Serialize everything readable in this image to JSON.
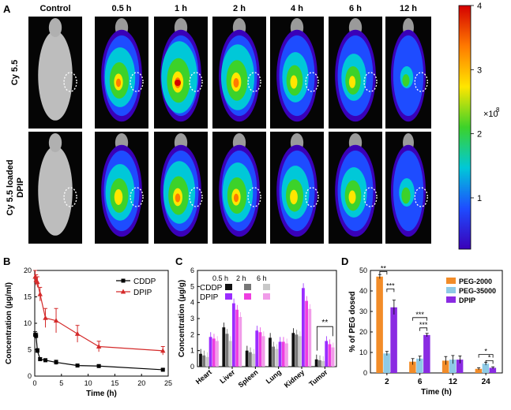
{
  "panel_letters": {
    "a": "A",
    "b": "B",
    "c": "C",
    "d": "D"
  },
  "panel_a": {
    "column_labels": [
      "Control",
      "0.5 h",
      "1 h",
      "2 h",
      "4 h",
      "6 h",
      "12 h"
    ],
    "row_labels": [
      "Cy 5.5",
      "Cy 5.5 loaded DPIP"
    ],
    "row2_label_lines": [
      "Cy 5.5 loaded",
      "DPIP"
    ],
    "intensity_rows": [
      [
        0,
        0.75,
        0.95,
        0.85,
        0.6,
        0.55,
        0.15
      ],
      [
        0,
        0.7,
        0.8,
        0.75,
        0.65,
        0.6,
        0.25
      ]
    ],
    "colorbar": {
      "ticks": [
        "4",
        "3",
        "2",
        "1"
      ],
      "scale_base": "×10",
      "scale_exp": "8",
      "colors": [
        "#d40000",
        "#ff7a00",
        "#ffe600",
        "#3cd22a",
        "#00c8d8",
        "#1e4cff",
        "#3a00b8"
      ]
    }
  },
  "chart_data": [
    {
      "panel": "B",
      "type": "line",
      "ylabel": "Concentration (μg/ml)",
      "xlabel": "Time (h)",
      "xlim": [
        0,
        25
      ],
      "ylim": [
        0,
        20
      ],
      "xticks": [
        "0",
        "5",
        "10",
        "15",
        "20",
        "25"
      ],
      "yticks": [
        "0",
        "5",
        "10",
        "15",
        "20"
      ],
      "series": [
        {
          "name": "CDDP",
          "color": "#000000",
          "marker": "square",
          "x": [
            0.083,
            0.25,
            0.5,
            1,
            2,
            4,
            8,
            12,
            24
          ],
          "y": [
            7.8,
            7.6,
            4.8,
            3.2,
            3.0,
            2.6,
            2.0,
            1.9,
            1.2
          ],
          "err": [
            0.6,
            0.5,
            0.4,
            0.3,
            0.3,
            0.4,
            0.2,
            0.2,
            0.2
          ]
        },
        {
          "name": "DPIP",
          "color": "#d42a2a",
          "marker": "triangle",
          "x": [
            0.083,
            0.25,
            0.5,
            1,
            2,
            4,
            8,
            12,
            24
          ],
          "y": [
            18.8,
            18.2,
            17.8,
            15.5,
            11.0,
            10.5,
            8.0,
            5.6,
            4.8
          ],
          "err": [
            1.2,
            1.0,
            1.0,
            1.3,
            1.8,
            2.3,
            1.6,
            1.0,
            0.8
          ]
        }
      ]
    },
    {
      "panel": "C",
      "type": "bar",
      "ylabel": "Concentration (μg/g)",
      "ylim": [
        0,
        6
      ],
      "yticks": [
        "0",
        "1",
        "2",
        "3",
        "4",
        "5",
        "6"
      ],
      "categories": [
        "Heart",
        "Liver",
        "Spleen",
        "Lung",
        "Kidney",
        "Tumor"
      ],
      "legend_times": [
        "0.5 h",
        "2 h",
        "6 h"
      ],
      "legend_groups": [
        "CDDP",
        "DPIP"
      ],
      "series": [
        {
          "name": "CDDP 0.5 h",
          "color": "#111111",
          "values": [
            0.8,
            2.45,
            1.0,
            1.8,
            2.1,
            0.45
          ]
        },
        {
          "name": "CDDP 2 h",
          "color": "#777777",
          "values": [
            0.7,
            2.05,
            0.9,
            1.25,
            2.0,
            0.4
          ]
        },
        {
          "name": "CDDP 6 h",
          "color": "#c8c8c8",
          "values": [
            0.6,
            1.6,
            0.8,
            1.1,
            1.9,
            0.35
          ]
        },
        {
          "name": "DPIP 0.5 h",
          "color": "#9b2cff",
          "values": [
            1.85,
            3.95,
            2.25,
            1.55,
            4.9,
            1.6
          ]
        },
        {
          "name": "DPIP 2 h",
          "color": "#ee3ee0",
          "values": [
            1.75,
            3.55,
            2.15,
            1.55,
            4.1,
            1.4
          ]
        },
        {
          "name": "DPIP 6 h",
          "color": "#f19ce9",
          "values": [
            1.6,
            3.1,
            1.9,
            1.45,
            3.6,
            1.2
          ]
        }
      ],
      "significance": [
        {
          "category": "Tumor",
          "label": "**"
        }
      ]
    },
    {
      "panel": "D",
      "type": "bar",
      "ylabel": "% of PEG dosed",
      "xlabel": "Time (h)",
      "ylim": [
        0,
        50
      ],
      "yticks": [
        "0",
        "10",
        "20",
        "30",
        "40",
        "50"
      ],
      "categories": [
        "2",
        "6",
        "12",
        "24"
      ],
      "series": [
        {
          "name": "PEG-2000",
          "color": "#f28c28",
          "values": [
            47,
            5.5,
            6.0,
            2.0
          ],
          "err": [
            1.0,
            1.5,
            2.0,
            0.5
          ]
        },
        {
          "name": "PEG-35000",
          "color": "#8ecae6",
          "values": [
            9.5,
            7.0,
            6.5,
            4.5
          ],
          "err": [
            1.0,
            1.2,
            2.0,
            0.7
          ]
        },
        {
          "name": "DPIP",
          "color": "#8a2be2",
          "values": [
            32.0,
            18.5,
            6.5,
            2.5
          ],
          "err": [
            3.5,
            0.8,
            1.8,
            0.5
          ]
        }
      ],
      "significance": [
        {
          "category": "2",
          "labels": [
            "**",
            "***"
          ]
        },
        {
          "category": "6",
          "labels": [
            "***",
            "***"
          ]
        },
        {
          "category": "24",
          "labels": [
            "*",
            "*"
          ]
        }
      ]
    }
  ]
}
